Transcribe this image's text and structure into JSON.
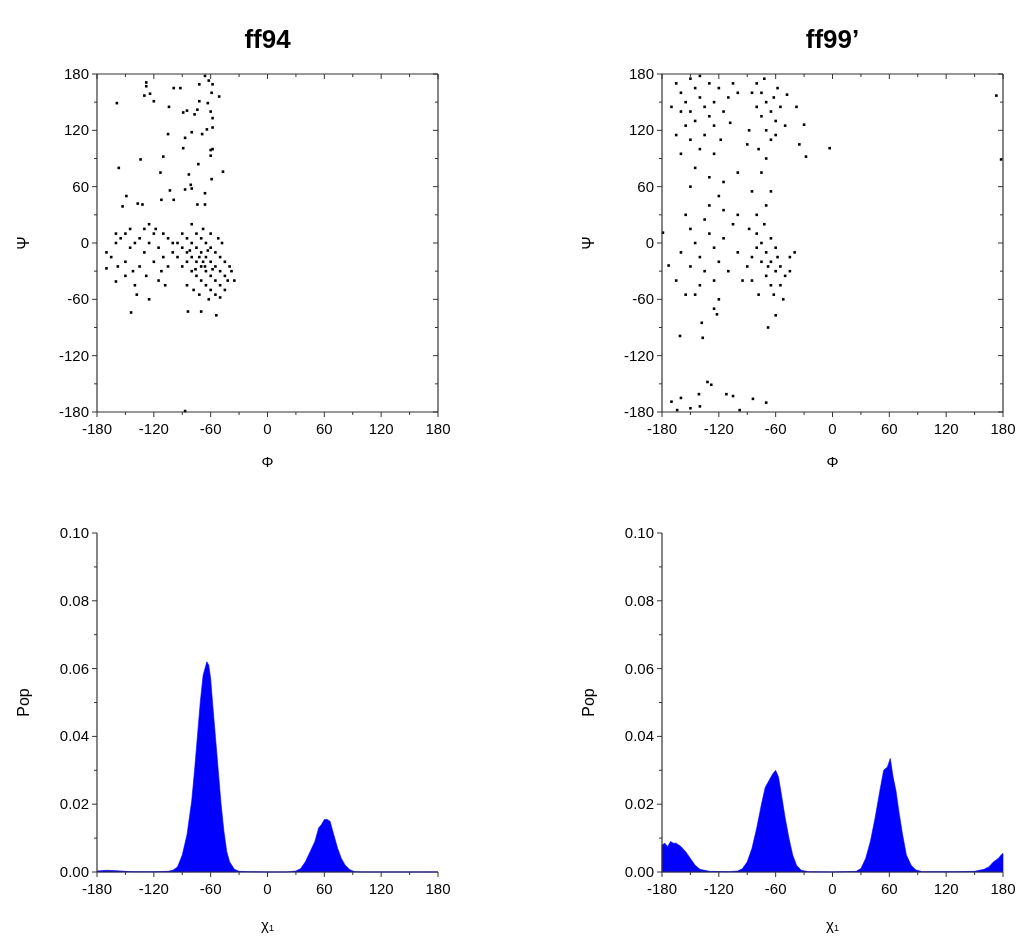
{
  "chart_data": [
    {
      "type": "scatter",
      "title": "ff94",
      "xlabel": "Φ",
      "ylabel": "Ψ",
      "xlim": [
        -180,
        180
      ],
      "ylim": [
        -180,
        180
      ],
      "marker": "square",
      "xticks": [
        -180,
        {
          "value": -150,
          "label": null
        },
        -120,
        {
          "value": -90,
          "label": null
        },
        -60,
        {
          "value": -30,
          "label": null
        },
        0,
        {
          "value": 30,
          "label": null
        },
        60,
        {
          "value": 90,
          "label": null
        },
        120,
        {
          "value": 150,
          "label": null
        },
        180
      ],
      "yticks": [
        -180,
        {
          "value": -150,
          "label": null
        },
        -120,
        {
          "value": -90,
          "label": null
        },
        -60,
        {
          "value": -30,
          "label": null
        },
        0,
        {
          "value": 30,
          "label": null
        },
        60,
        {
          "value": 90,
          "label": null
        },
        120,
        {
          "value": 150,
          "label": null
        },
        180
      ],
      "series": [
        {
          "color": "#000000",
          "x": [
            -159,
            -157,
            -128,
            -128,
            -130,
            -124,
            -120,
            -99,
            -92,
            -104,
            -134,
            -110,
            -113,
            -105,
            -89,
            -85,
            -77,
            -87,
            -89,
            -80,
            -74,
            -72,
            -72,
            -66,
            -62,
            -58,
            -59,
            -51,
            -63,
            -60,
            -58,
            -64,
            -69,
            -58,
            -60,
            -58,
            -60,
            -47,
            -59,
            -73,
            -83,
            -81,
            -80,
            -87,
            -103,
            -74,
            -66,
            -99,
            -112,
            -137,
            -132,
            -149,
            -153,
            -66,
            -144,
            -84,
            -70,
            -54,
            -87,
            -160,
            -170,
            -90,
            -85,
            -80,
            -75,
            -70,
            -65,
            -60,
            -55,
            -50,
            -45,
            -85,
            -80,
            -75,
            -70,
            -65,
            -60,
            -55,
            -50,
            -45,
            -80,
            -75,
            -70,
            -65,
            -60,
            -55,
            -50,
            -90,
            -85,
            -90,
            -95,
            -95,
            -75,
            -70,
            -65,
            -60,
            -55,
            -50,
            -45,
            -40,
            -42,
            -38,
            -35,
            -68,
            -60,
            -52,
            -48,
            -80,
            -72,
            -62,
            -85,
            -78,
            -68,
            -72,
            -66,
            -58,
            -63,
            -76,
            -82,
            -160,
            -155,
            -150,
            -145,
            -140,
            -135,
            -130,
            -125,
            -120,
            -115,
            -110,
            -105,
            -100,
            -165,
            -158,
            -150,
            -142,
            -135,
            -128,
            -120,
            -112,
            -105,
            -100,
            -118,
            -130,
            -145,
            -160,
            -170,
            -140,
            -138,
            -125,
            -115,
            -108,
            -150,
            -125,
            -110
          ],
          "values": [
            149,
            80,
            171,
            167,
            157,
            159,
            151,
            165,
            165,
            145,
            89,
            92,
            75,
            116,
            139,
            141,
            137,
            112,
            101,
            118,
            142,
            151,
            169,
            178,
            173,
            169,
            160,
            156,
            149,
            140,
            133,
            121,
            116,
            123,
            99,
            100,
            93,
            76,
            68,
            84,
            73,
            62,
            58,
            57,
            56,
            41,
            53,
            46,
            46,
            42,
            41,
            50,
            39,
            41,
            -74,
            -73,
            -73,
            -77,
            -179,
            -41,
            -27,
            10,
            5,
            0,
            -5,
            -10,
            -15,
            -20,
            -25,
            -30,
            -35,
            -10,
            -15,
            -20,
            -25,
            -30,
            -35,
            -40,
            -45,
            -50,
            -30,
            -35,
            -40,
            -45,
            -50,
            -55,
            -58,
            -5,
            -20,
            -25,
            -15,
            0,
            10,
            5,
            0,
            -5,
            -10,
            -15,
            -20,
            -25,
            -40,
            -30,
            -40,
            15,
            10,
            5,
            0,
            20,
            -55,
            -60,
            -45,
            -50,
            -20,
            -15,
            -25,
            -28,
            -8,
            -28,
            -8,
            0,
            5,
            10,
            -5,
            0,
            5,
            -10,
            0,
            10,
            -5,
            -15,
            5,
            -10,
            -15,
            -25,
            -20,
            -30,
            -25,
            -35,
            -20,
            -30,
            -25,
            0,
            15,
            15,
            15,
            10,
            -10,
            -45,
            -55,
            -60,
            -40,
            -45,
            -35,
            20,
            10
          ]
        }
      ]
    },
    {
      "type": "scatter",
      "title": "ff99’",
      "xlabel": "Φ",
      "ylabel": "Ψ",
      "xlim": [
        -180,
        180
      ],
      "ylim": [
        -180,
        180
      ],
      "marker": "square",
      "xticks": [
        -180,
        {
          "value": -150,
          "label": null
        },
        -120,
        {
          "value": -90,
          "label": null
        },
        -60,
        {
          "value": -30,
          "label": null
        },
        0,
        {
          "value": 30,
          "label": null
        },
        60,
        {
          "value": 90,
          "label": null
        },
        120,
        {
          "value": 150,
          "label": null
        },
        180
      ],
      "yticks": [
        -180,
        {
          "value": -150,
          "label": null
        },
        -120,
        {
          "value": -90,
          "label": null
        },
        -60,
        {
          "value": -30,
          "label": null
        },
        0,
        {
          "value": 30,
          "label": null
        },
        60,
        {
          "value": 90,
          "label": null
        },
        120,
        {
          "value": 150,
          "label": null
        },
        180
      ],
      "series": [
        {
          "color": "#000000",
          "x": [
            173,
            178,
            -3,
            -30,
            -28,
            -35,
            -38,
            -161,
            -137,
            -138,
            -68,
            -60,
            -122,
            -179,
            -173,
            -170,
            -160,
            -141,
            -132,
            -128,
            -112,
            -105,
            -84,
            -70,
            -164,
            -150,
            -140,
            -98,
            -165,
            -160,
            -155,
            -150,
            -145,
            -140,
            -135,
            -130,
            -125,
            -120,
            -145,
            -155,
            -160,
            -150,
            -140,
            -130,
            -125,
            -135,
            -150,
            -165,
            -170,
            -115,
            -110,
            -105,
            -100,
            -108,
            -118,
            -160,
            -140,
            -125,
            -145,
            -130,
            -115,
            -150,
            -100,
            -80,
            -75,
            -70,
            -65,
            -60,
            -75,
            -70,
            -80,
            -85,
            -62,
            -55,
            -50,
            -65,
            -78,
            -70,
            -60,
            -88,
            -72,
            -58,
            -48,
            -90,
            -75,
            -65,
            -85,
            -70,
            -80,
            -155,
            -150,
            -145,
            -140,
            -135,
            -130,
            -125,
            -120,
            -135,
            -150,
            -160,
            -165,
            -140,
            -125,
            -115,
            -110,
            -105,
            -100,
            -95,
            -130,
            -115,
            -145,
            -120,
            -155,
            -125,
            -100,
            -120,
            -80,
            -75,
            -70,
            -65,
            -60,
            -55,
            -70,
            -75,
            -80,
            -85,
            -65,
            -55,
            -50,
            -45,
            -60,
            -65,
            -85,
            -78,
            -62,
            -52,
            -88,
            -72,
            -45,
            -40,
            -90,
            -68,
            -58
          ],
          "values": [
            157,
            89,
            101,
            126,
            92,
            105,
            145,
            -99,
            -101,
            -85,
            -90,
            -77,
            -76,
            11,
            -24,
            -169,
            -165,
            -161,
            -148,
            -151,
            -161,
            -163,
            -166,
            -170,
            -178,
            -176,
            -174,
            -178,
            170,
            160,
            150,
            140,
            165,
            155,
            145,
            135,
            150,
            165,
            130,
            125,
            140,
            175,
            178,
            170,
            125,
            115,
            110,
            115,
            145,
            140,
            155,
            170,
            160,
            128,
            110,
            95,
            100,
            95,
            80,
            70,
            65,
            60,
            75,
            170,
            160,
            150,
            140,
            130,
            135,
            120,
            145,
            160,
            155,
            145,
            125,
            110,
            100,
            90,
            115,
            120,
            175,
            165,
            158,
            105,
            75,
            55,
            55,
            40,
            30,
            30,
            15,
            0,
            -15,
            25,
            10,
            -5,
            -20,
            -30,
            -25,
            -10,
            -40,
            -45,
            -40,
            5,
            -30,
            20,
            -10,
            -40,
            40,
            35,
            -55,
            -60,
            -55,
            -70,
            30,
            50,
            10,
            0,
            -10,
            -20,
            -30,
            -25,
            -35,
            -20,
            -5,
            -15,
            -45,
            -45,
            -35,
            -15,
            -5,
            5,
            -40,
            -55,
            -55,
            -60,
            15,
            20,
            -30,
            -10,
            -25,
            -25,
            -15
          ]
        }
      ]
    },
    {
      "type": "area",
      "xlabel": "χ₁",
      "ylabel": "Pop",
      "xlim": [
        -180,
        180
      ],
      "ylim": [
        0,
        0.1
      ],
      "xticks": [
        -180,
        {
          "value": -150,
          "label": null
        },
        -120,
        {
          "value": -90,
          "label": null
        },
        -60,
        {
          "value": -30,
          "label": null
        },
        0,
        {
          "value": 30,
          "label": null
        },
        60,
        {
          "value": 90,
          "label": null
        },
        120,
        {
          "value": 150,
          "label": null
        },
        180
      ],
      "yticks": [
        {
          "value": 0,
          "label": "0.00"
        },
        {
          "value": 0.01,
          "label": null
        },
        {
          "value": 0.02,
          "label": "0.02"
        },
        {
          "value": 0.03,
          "label": null
        },
        {
          "value": 0.04,
          "label": "0.04"
        },
        {
          "value": 0.05,
          "label": null
        },
        {
          "value": 0.06,
          "label": "0.06"
        },
        {
          "value": 0.07,
          "label": null
        },
        {
          "value": 0.08,
          "label": "0.08"
        },
        {
          "value": 0.09,
          "label": null
        },
        {
          "value": 0.1,
          "label": "0.10"
        }
      ],
      "series": [
        {
          "color": "#0000ff",
          "x": [
            -180,
            -170,
            -160,
            -150,
            -140,
            -120,
            -105,
            -100,
            -95,
            -90,
            -85,
            -80,
            -77,
            -74,
            -71,
            -68,
            -66,
            -64,
            -62,
            -60,
            -58,
            -55,
            -52,
            -49,
            -46,
            -43,
            -40,
            -35,
            -30,
            -20,
            0,
            20,
            30,
            35,
            40,
            45,
            50,
            54,
            57,
            60,
            63,
            66,
            70,
            74,
            78,
            82,
            87,
            92,
            100,
            140,
            180
          ],
          "values": [
            0.0003,
            0.0005,
            0.0004,
            0.0002,
            0.0001,
            0.0001,
            0.0002,
            0.0005,
            0.0015,
            0.005,
            0.011,
            0.021,
            0.03,
            0.04,
            0.05,
            0.058,
            0.06,
            0.062,
            0.061,
            0.057,
            0.05,
            0.04,
            0.03,
            0.02,
            0.012,
            0.006,
            0.003,
            0.0008,
            0.0002,
            0.0001,
            0,
            0,
            0.0003,
            0.001,
            0.003,
            0.006,
            0.009,
            0.013,
            0.014,
            0.0155,
            0.0155,
            0.015,
            0.011,
            0.007,
            0.004,
            0.002,
            0.0007,
            0.0001,
            0,
            0,
            0
          ]
        }
      ]
    },
    {
      "type": "area",
      "xlabel": "χ₁",
      "ylabel": "Pop",
      "xlim": [
        -180,
        180
      ],
      "ylim": [
        0,
        0.1
      ],
      "xticks": [
        -180,
        {
          "value": -150,
          "label": null
        },
        -120,
        {
          "value": -90,
          "label": null
        },
        -60,
        {
          "value": -30,
          "label": null
        },
        0,
        {
          "value": 30,
          "label": null
        },
        60,
        {
          "value": 90,
          "label": null
        },
        120,
        {
          "value": 150,
          "label": null
        },
        180
      ],
      "yticks": [
        {
          "value": 0,
          "label": "0.00"
        },
        {
          "value": 0.01,
          "label": null
        },
        {
          "value": 0.02,
          "label": "0.02"
        },
        {
          "value": 0.03,
          "label": null
        },
        {
          "value": 0.04,
          "label": "0.04"
        },
        {
          "value": 0.05,
          "label": null
        },
        {
          "value": 0.06,
          "label": "0.06"
        },
        {
          "value": 0.07,
          "label": null
        },
        {
          "value": 0.08,
          "label": "0.08"
        },
        {
          "value": 0.09,
          "label": null
        },
        {
          "value": 0.1,
          "label": "0.10"
        }
      ],
      "series": [
        {
          "color": "#0000ff",
          "x": [
            -180,
            -177,
            -174,
            -171,
            -168,
            -165,
            -160,
            -155,
            -150,
            -145,
            -140,
            -130,
            -110,
            -100,
            -95,
            -90,
            -85,
            -80,
            -75,
            -71,
            -67,
            -63,
            -60,
            -57,
            -54,
            -50,
            -46,
            -42,
            -38,
            -33,
            -25,
            0,
            25,
            30,
            35,
            40,
            45,
            50,
            54,
            58,
            61,
            64,
            67,
            70,
            74,
            78,
            83,
            88,
            95,
            130,
            150,
            160,
            165,
            170,
            175,
            178,
            180
          ],
          "values": [
            0.008,
            0.0085,
            0.0075,
            0.009,
            0.0085,
            0.0085,
            0.0075,
            0.006,
            0.004,
            0.002,
            0.0008,
            0.0002,
            0.0001,
            0.0003,
            0.001,
            0.003,
            0.007,
            0.013,
            0.02,
            0.025,
            0.027,
            0.029,
            0.03,
            0.028,
            0.023,
            0.016,
            0.01,
            0.005,
            0.002,
            0.0005,
            0.0001,
            0,
            0.0002,
            0.001,
            0.004,
            0.009,
            0.016,
            0.024,
            0.03,
            0.031,
            0.0335,
            0.028,
            0.024,
            0.018,
            0.011,
            0.005,
            0.002,
            0.0006,
            0.0001,
            0.0001,
            0.0002,
            0.0008,
            0.0015,
            0.003,
            0.004,
            0.005,
            0.0055
          ]
        }
      ]
    }
  ]
}
